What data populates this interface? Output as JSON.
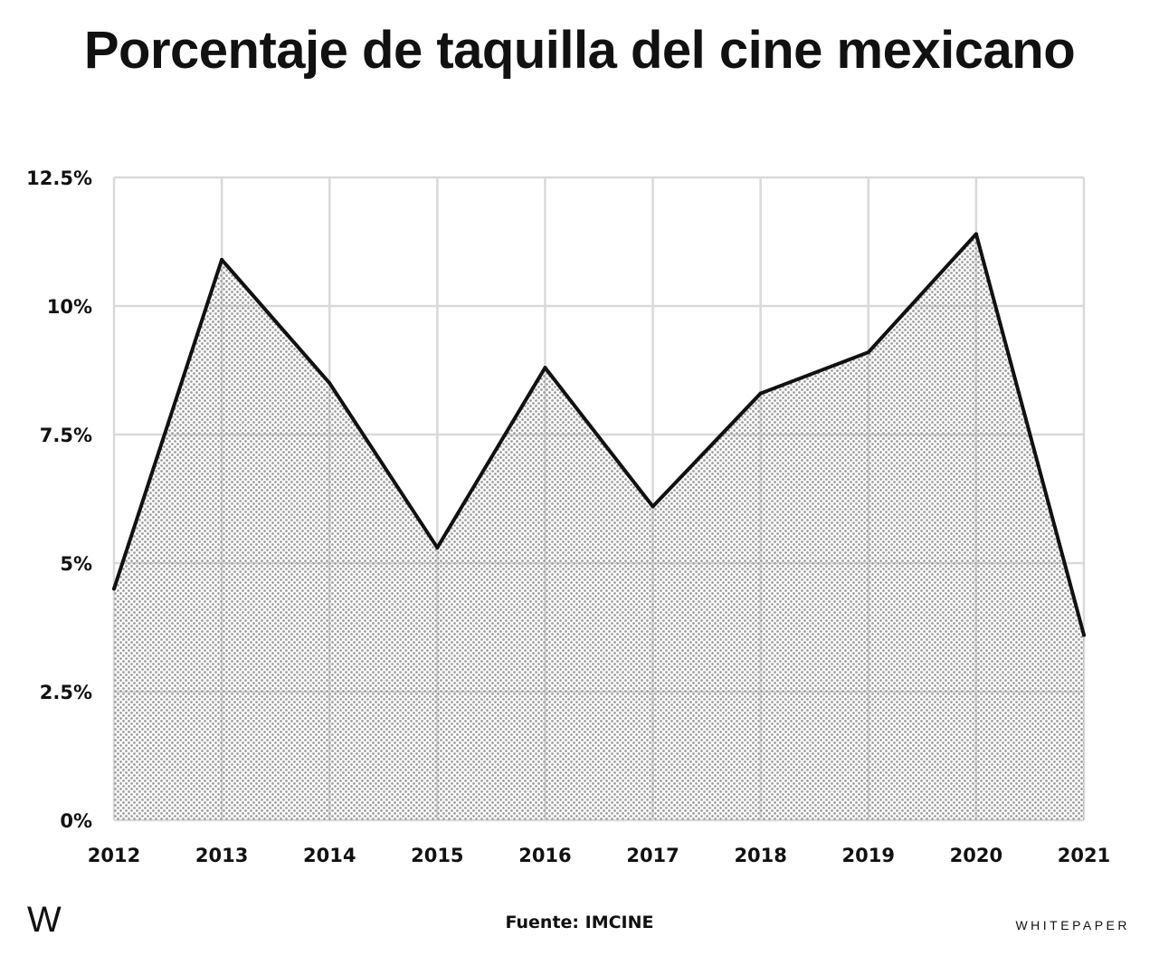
{
  "title": "Porcentaje de taquilla del cine mexicano",
  "source": "Fuente: IMCINE",
  "logo": "W",
  "brand": "WHITEPAPER",
  "colors": {
    "line": "#111111",
    "grid": "#d9d9d9",
    "fill_dot": "#9a9a9a",
    "background": "#ffffff"
  },
  "chart_data": {
    "type": "area",
    "title": "Porcentaje de taquilla del cine mexicano",
    "xlabel": "",
    "ylabel": "",
    "x": [
      "2012",
      "2013",
      "2014",
      "2015",
      "2016",
      "2017",
      "2018",
      "2019",
      "2020",
      "2021"
    ],
    "values": [
      4.5,
      10.9,
      8.5,
      5.3,
      8.8,
      6.1,
      8.3,
      9.1,
      11.4,
      3.6
    ],
    "ylim": [
      0,
      12.5
    ],
    "y_ticks": [
      "0%",
      "2.5%",
      "5%",
      "7.5%",
      "10%",
      "12.5%"
    ],
    "y_tick_values": [
      0,
      2.5,
      5,
      7.5,
      10,
      12.5
    ],
    "grid": true,
    "legend": "none"
  }
}
